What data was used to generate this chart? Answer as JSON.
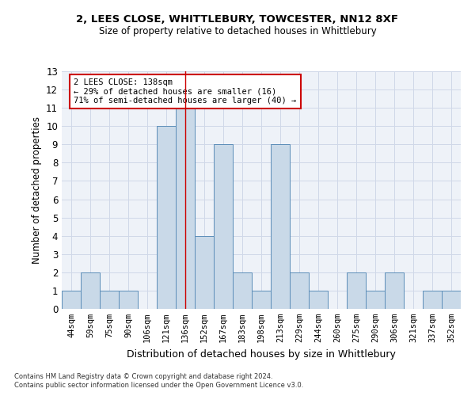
{
  "title1": "2, LEES CLOSE, WHITTLEBURY, TOWCESTER, NN12 8XF",
  "title2": "Size of property relative to detached houses in Whittlebury",
  "xlabel": "Distribution of detached houses by size in Whittlebury",
  "ylabel": "Number of detached properties",
  "categories": [
    "44sqm",
    "59sqm",
    "75sqm",
    "90sqm",
    "106sqm",
    "121sqm",
    "136sqm",
    "152sqm",
    "167sqm",
    "183sqm",
    "198sqm",
    "213sqm",
    "229sqm",
    "244sqm",
    "260sqm",
    "275sqm",
    "290sqm",
    "306sqm",
    "321sqm",
    "337sqm",
    "352sqm"
  ],
  "values": [
    1,
    2,
    1,
    1,
    0,
    10,
    11,
    4,
    9,
    2,
    1,
    9,
    2,
    1,
    0,
    2,
    1,
    2,
    0,
    1,
    1
  ],
  "bar_color": "#c9d9e8",
  "bar_edge_color": "#5b8db8",
  "highlight_index": 6,
  "highlight_line_color": "#cc0000",
  "annotation_text": "2 LEES CLOSE: 138sqm\n← 29% of detached houses are smaller (16)\n71% of semi-detached houses are larger (40) →",
  "annotation_box_color": "#ffffff",
  "annotation_box_edge": "#cc0000",
  "grid_color": "#d0d8e8",
  "background_color": "#eef2f8",
  "ylim": [
    0,
    13
  ],
  "yticks": [
    0,
    1,
    2,
    3,
    4,
    5,
    6,
    7,
    8,
    9,
    10,
    11,
    12,
    13
  ],
  "footer1": "Contains HM Land Registry data © Crown copyright and database right 2024.",
  "footer2": "Contains public sector information licensed under the Open Government Licence v3.0."
}
